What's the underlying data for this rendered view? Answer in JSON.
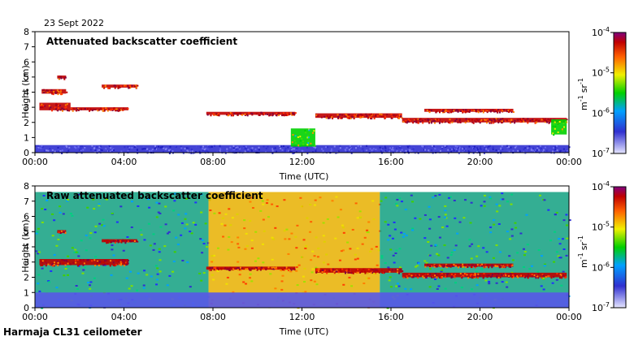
{
  "date_label": "23 Sept 2022",
  "footer": "Harmaja CL31 ceilometer",
  "chart_data": [
    {
      "type": "heatmap",
      "title": "Attenuated backscatter coefficient",
      "xlabel": "Time (UTC)",
      "ylabel": "Height (km)",
      "xlim": [
        0,
        24
      ],
      "ylim": [
        0,
        8
      ],
      "xticks": [
        "00:00",
        "04:00",
        "08:00",
        "12:00",
        "16:00",
        "20:00",
        "00:00"
      ],
      "yticks": [
        "0",
        "1",
        "2",
        "3",
        "4",
        "5",
        "6",
        "7",
        "8"
      ],
      "colorbar": {
        "scale": "log",
        "range": [
          1e-07,
          0.0001
        ],
        "ticks": [
          {
            "base": "10",
            "exp": "-4"
          },
          {
            "base": "10",
            "exp": "-5"
          },
          {
            "base": "10",
            "exp": "-6"
          },
          {
            "base": "10",
            "exp": "-7"
          }
        ],
        "unit": {
          "m": "m",
          "m_exp": "-1",
          "sr": "sr",
          "sr_exp": "-1"
        }
      },
      "layers": [
        {
          "t0": 0.0,
          "t1": 24.0,
          "h0": 0.0,
          "h1": 0.5,
          "level": "low",
          "kind": "aerosol"
        },
        {
          "t0": 0.2,
          "t1": 1.6,
          "h0": 2.8,
          "h1": 3.3,
          "level": "high",
          "kind": "cloud"
        },
        {
          "t0": 1.6,
          "t1": 4.2,
          "h0": 2.8,
          "h1": 3.0,
          "level": "high",
          "kind": "cloud"
        },
        {
          "t0": 0.3,
          "t1": 1.4,
          "h0": 3.9,
          "h1": 4.2,
          "level": "high",
          "kind": "cloud"
        },
        {
          "t0": 1.0,
          "t1": 1.4,
          "h0": 4.9,
          "h1": 5.1,
          "level": "high",
          "kind": "cloud"
        },
        {
          "t0": 3.0,
          "t1": 4.6,
          "h0": 4.3,
          "h1": 4.5,
          "level": "high",
          "kind": "cloud"
        },
        {
          "t0": 7.7,
          "t1": 11.7,
          "h0": 2.5,
          "h1": 2.7,
          "level": "high",
          "kind": "cloud"
        },
        {
          "t0": 11.5,
          "t1": 12.6,
          "h0": 0.4,
          "h1": 1.6,
          "level": "mid",
          "kind": "cloud"
        },
        {
          "t0": 12.6,
          "t1": 16.5,
          "h0": 2.3,
          "h1": 2.6,
          "level": "high",
          "kind": "cloud"
        },
        {
          "t0": 16.5,
          "t1": 23.9,
          "h0": 2.0,
          "h1": 2.3,
          "level": "high",
          "kind": "cloud"
        },
        {
          "t0": 17.5,
          "t1": 21.5,
          "h0": 2.7,
          "h1": 2.9,
          "level": "high",
          "kind": "cloud"
        },
        {
          "t0": 23.2,
          "t1": 23.9,
          "h0": 1.2,
          "h1": 2.2,
          "level": "mid",
          "kind": "cloud"
        }
      ]
    },
    {
      "type": "heatmap",
      "title": "Raw attenuated backscatter coefficient",
      "xlabel": "Time (UTC)",
      "ylabel": "Height (km)",
      "xlim": [
        0,
        24
      ],
      "ylim": [
        0,
        8
      ],
      "xticks": [
        "00:00",
        "04:00",
        "08:00",
        "12:00",
        "16:00",
        "20:00",
        "00:00"
      ],
      "yticks": [
        "0",
        "1",
        "2",
        "3",
        "4",
        "5",
        "6",
        "7",
        "8"
      ],
      "colorbar": {
        "scale": "log",
        "range": [
          1e-07,
          0.0001
        ],
        "ticks": [
          {
            "base": "10",
            "exp": "-4"
          },
          {
            "base": "10",
            "exp": "-5"
          },
          {
            "base": "10",
            "exp": "-6"
          },
          {
            "base": "10",
            "exp": "-7"
          }
        ],
        "unit": {
          "m": "m",
          "m_exp": "-1",
          "sr": "sr",
          "sr_exp": "-1"
        }
      },
      "noise_periods": [
        {
          "t0": 0.0,
          "t1": 7.8,
          "level": "moderate"
        },
        {
          "t0": 7.8,
          "t1": 12.0,
          "level": "high"
        },
        {
          "t0": 12.0,
          "t1": 15.5,
          "level": "high"
        },
        {
          "t0": 15.5,
          "t1": 24.0,
          "level": "moderate"
        }
      ],
      "layers": [
        {
          "t0": 0.2,
          "t1": 4.2,
          "h0": 2.8,
          "h1": 3.2,
          "level": "high",
          "kind": "cloud"
        },
        {
          "t0": 1.0,
          "t1": 1.4,
          "h0": 4.9,
          "h1": 5.1,
          "level": "high",
          "kind": "cloud"
        },
        {
          "t0": 3.0,
          "t1": 4.6,
          "h0": 4.3,
          "h1": 4.5,
          "level": "high",
          "kind": "cloud"
        },
        {
          "t0": 7.7,
          "t1": 11.7,
          "h0": 2.5,
          "h1": 2.7,
          "level": "high",
          "kind": "cloud"
        },
        {
          "t0": 12.6,
          "t1": 16.5,
          "h0": 2.3,
          "h1": 2.6,
          "level": "high",
          "kind": "cloud"
        },
        {
          "t0": 16.5,
          "t1": 23.9,
          "h0": 2.0,
          "h1": 2.3,
          "level": "high",
          "kind": "cloud"
        },
        {
          "t0": 17.5,
          "t1": 21.5,
          "h0": 2.7,
          "h1": 2.9,
          "level": "high",
          "kind": "cloud"
        }
      ]
    }
  ]
}
